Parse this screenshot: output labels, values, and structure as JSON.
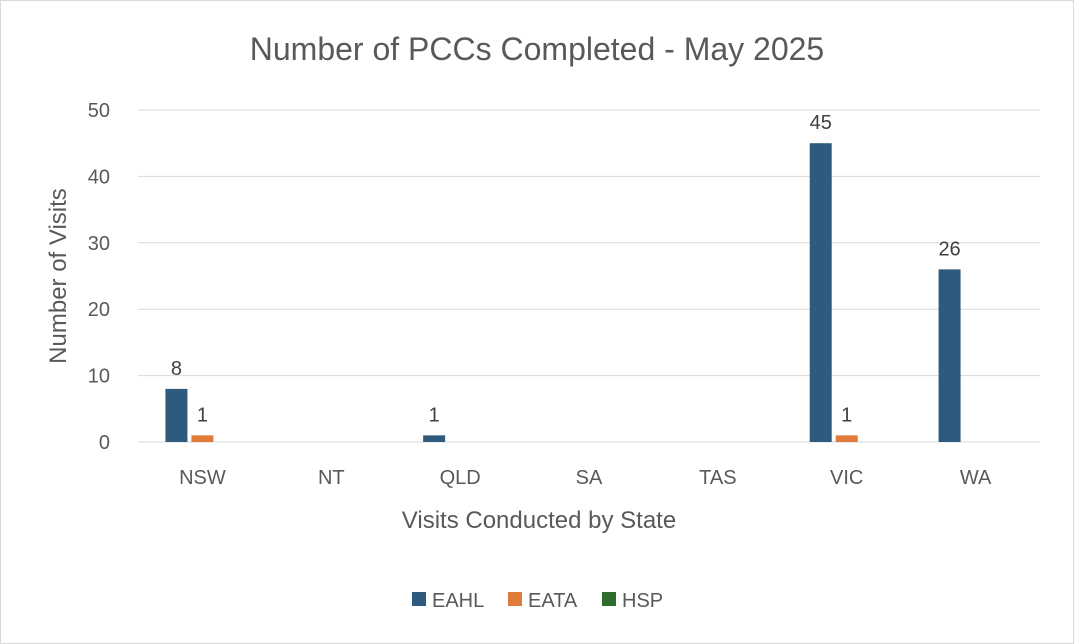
{
  "chart_data": {
    "type": "bar",
    "title": "Number of PCCs Completed - May 2025",
    "xlabel": "Visits Conducted by State",
    "ylabel": "Number of Visits",
    "categories": [
      "NSW",
      "NT",
      "QLD",
      "SA",
      "TAS",
      "VIC",
      "WA"
    ],
    "ylim": [
      0,
      50
    ],
    "yticks": [
      0,
      10,
      20,
      30,
      40,
      50
    ],
    "grid": true,
    "legend": "bottom",
    "series": [
      {
        "name": "EAHL",
        "color": "#2e5b7d",
        "values": [
          8,
          0,
          1,
          0,
          0,
          45,
          26
        ],
        "labels": [
          "8",
          "",
          "1",
          "",
          "",
          "45",
          "26"
        ]
      },
      {
        "name": "EATA",
        "color": "#e07b39",
        "values": [
          1,
          0,
          0,
          0,
          0,
          1,
          0
        ],
        "labels": [
          "1",
          "",
          "",
          "",
          "",
          "1",
          ""
        ]
      },
      {
        "name": "HSP",
        "color": "#2e6b2e",
        "values": [
          0,
          0,
          0,
          0,
          0,
          0,
          0
        ],
        "labels": [
          "",
          "",
          "",
          "",
          "",
          "",
          ""
        ]
      }
    ]
  }
}
